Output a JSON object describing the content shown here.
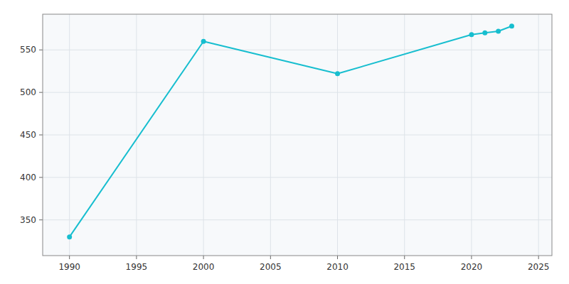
{
  "chart_data": {
    "type": "line",
    "x": [
      1990,
      2000,
      2010,
      2020,
      2021,
      2022,
      2023
    ],
    "values": [
      330,
      560,
      522,
      568,
      570,
      572,
      578
    ],
    "color": "#17becf",
    "marker": "circle",
    "xlim": [
      1988,
      2026
    ],
    "ylim": [
      308,
      592
    ],
    "xticks": [
      1990,
      1995,
      2000,
      2005,
      2010,
      2015,
      2020,
      2025
    ],
    "yticks": [
      350,
      400,
      450,
      500,
      550
    ],
    "grid": true
  }
}
